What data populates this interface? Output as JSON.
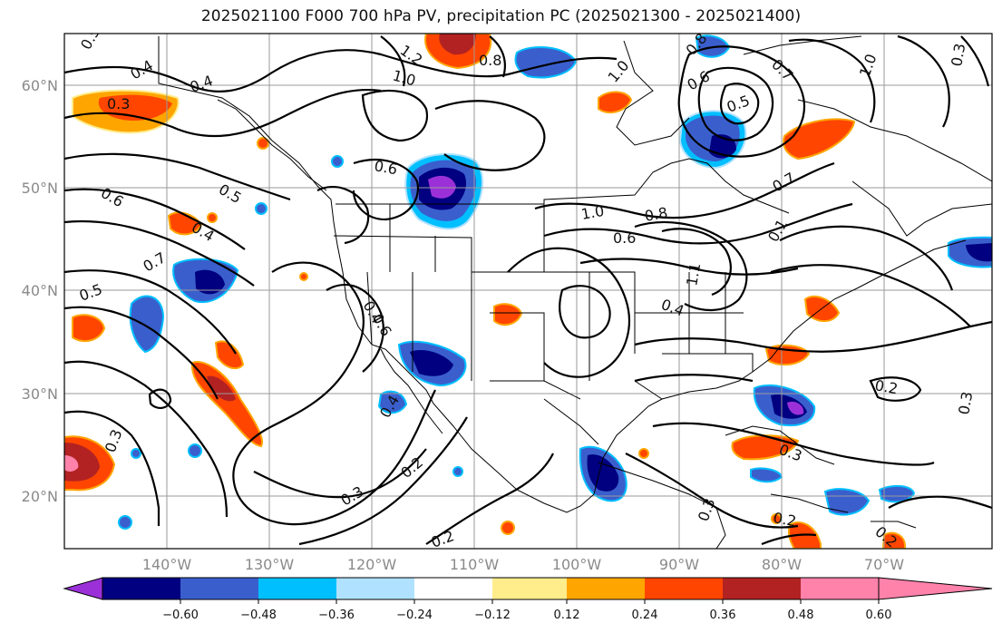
{
  "title": "2025021100 F000 700 hPa PV, precipitation PC (2025021300 - 2025021400)",
  "lat_labels": [
    "60°N",
    "50°N",
    "40°N",
    "30°N",
    "20°N"
  ],
  "lon_labels": [
    "140°W",
    "130°W",
    "120°W",
    "110°W",
    "100°W",
    "90°W",
    "80°W",
    "70°W"
  ],
  "contour_labels": [
    "0.5",
    "0.4",
    "0.3",
    "0.4",
    "1.2",
    "0.8",
    "1.0",
    "0.8",
    "0.7",
    "1.0",
    "0.6",
    "0.5",
    "1.0",
    "0.6",
    "0.6",
    "0.5",
    "0.4",
    "0.7",
    "0.5",
    "1.0",
    "0.8",
    "0.6",
    "0.7",
    "0.4",
    "0.4",
    "0.6",
    "0.2",
    "0.3",
    "0.4",
    "0.2",
    "0.3",
    "0.2",
    "0.3",
    "0.2",
    "0.2",
    "0.3",
    "0.3",
    "0.3",
    "1.1",
    "0.1"
  ],
  "colorbar": {
    "colors": [
      "#9b30d9",
      "#000080",
      "#3a5fcd",
      "#00bfff",
      "#b0e2ff",
      "#ffffff",
      "#ffec8b",
      "#ffa500",
      "#ff4500",
      "#b22222",
      "#ff82ab"
    ],
    "tick_labels": [
      "−0.60",
      "−0.48",
      "−0.36",
      "−0.24",
      "−0.12",
      "0.12",
      "0.24",
      "0.36",
      "0.48",
      "0.60"
    ]
  }
}
